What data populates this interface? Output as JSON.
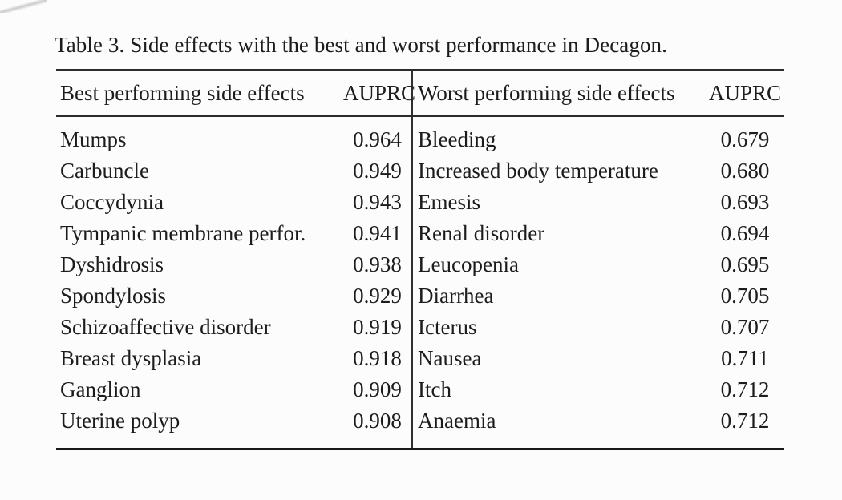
{
  "caption": "Table 3. Side effects with the best and worst performance in Decagon.",
  "colors": {
    "background": "#fcfcfc",
    "text": "#1c1c1c",
    "rule": "#2b2b2b"
  },
  "table": {
    "headers": {
      "best_label": "Best performing side effects",
      "best_metric": "AUPRC",
      "worst_label": "Worst performing side effects",
      "worst_metric": "AUPRC"
    },
    "rows": [
      {
        "best": "Mumps",
        "best_auprc": "0.964",
        "worst": "Bleeding",
        "worst_auprc": "0.679"
      },
      {
        "best": "Carbuncle",
        "best_auprc": "0.949",
        "worst": "Increased body temperature",
        "worst_auprc": "0.680"
      },
      {
        "best": "Coccydynia",
        "best_auprc": "0.943",
        "worst": "Emesis",
        "worst_auprc": "0.693"
      },
      {
        "best": "Tympanic membrane perfor.",
        "best_auprc": "0.941",
        "worst": "Renal disorder",
        "worst_auprc": "0.694"
      },
      {
        "best": "Dyshidrosis",
        "best_auprc": "0.938",
        "worst": "Leucopenia",
        "worst_auprc": "0.695"
      },
      {
        "best": "Spondylosis",
        "best_auprc": "0.929",
        "worst": "Diarrhea",
        "worst_auprc": "0.705"
      },
      {
        "best": "Schizoaffective disorder",
        "best_auprc": "0.919",
        "worst": "Icterus",
        "worst_auprc": "0.707"
      },
      {
        "best": "Breast dysplasia",
        "best_auprc": "0.918",
        "worst": "Nausea",
        "worst_auprc": "0.711"
      },
      {
        "best": "Ganglion",
        "best_auprc": "0.909",
        "worst": "Itch",
        "worst_auprc": "0.712"
      },
      {
        "best": "Uterine polyp",
        "best_auprc": "0.908",
        "worst": "Anaemia",
        "worst_auprc": "0.712"
      }
    ]
  }
}
